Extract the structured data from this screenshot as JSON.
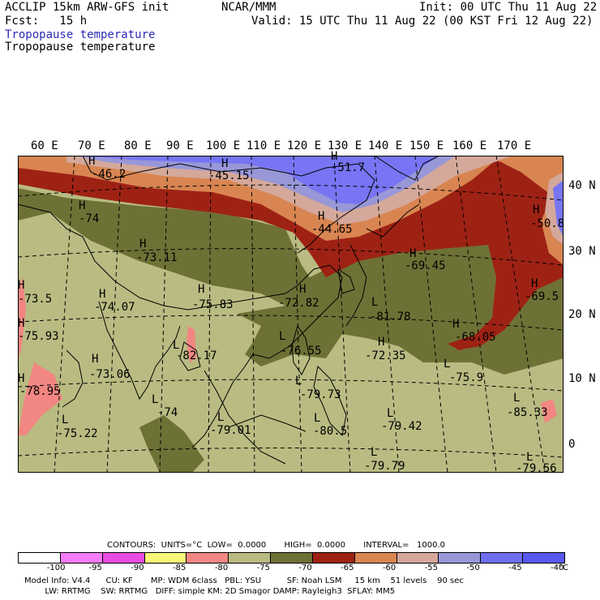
{
  "header": {
    "model_line": "ACCLIP 15km ARW-GFS init",
    "org": "NCAR/MMM",
    "init": "Init: 00 UTC Thu 11 Aug 22",
    "fcst": "Fcst:   15 h",
    "valid": "Valid: 15 UTC Thu 11 Aug 22 (00 KST Fri 12 Aug 22)",
    "field_1": "Tropopause temperature",
    "field_2": "Tropopause temperature"
  },
  "map": {
    "lon_labels": [
      "60 E",
      "70 E",
      "80 E",
      "90 E",
      "100 E",
      "110 E",
      "120 E",
      "130 E",
      "140 E",
      "150 E",
      "160 E",
      "170 E"
    ],
    "lat_labels": [
      "40 N",
      "30 N",
      "20 N",
      "10 N",
      "0"
    ],
    "highs": [
      {
        "mark": "H",
        "value": "-46.2"
      },
      {
        "mark": "H",
        "value": "-45.15"
      },
      {
        "mark": "H",
        "value": "-51.7"
      },
      {
        "mark": "H",
        "value": "-44.65"
      },
      {
        "mark": "H",
        "value": "-74"
      },
      {
        "mark": "H",
        "value": "-73.11"
      },
      {
        "mark": "H",
        "value": "-69.45"
      },
      {
        "mark": "H",
        "value": "-50.8"
      },
      {
        "mark": "H",
        "value": "-73.5"
      },
      {
        "mark": "H",
        "value": "-74.07"
      },
      {
        "mark": "H",
        "value": "-75.83"
      },
      {
        "mark": "H",
        "value": "-72.82"
      },
      {
        "mark": "H",
        "value": "-69.5"
      },
      {
        "mark": "H",
        "value": "-75.93"
      },
      {
        "mark": "H",
        "value": "-68.05"
      },
      {
        "mark": "H",
        "value": "-73.06"
      },
      {
        "mark": "H",
        "value": "-72.35"
      },
      {
        "mark": "H",
        "value": "-78.95"
      }
    ],
    "lows": [
      {
        "mark": "L",
        "value": "-81.78"
      },
      {
        "mark": "L",
        "value": "-82.17"
      },
      {
        "mark": "L",
        "value": "-76.55"
      },
      {
        "mark": "L",
        "value": "-75.9"
      },
      {
        "mark": "L",
        "value": "-79.73"
      },
      {
        "mark": "L",
        "value": "-74"
      },
      {
        "mark": "L",
        "value": "-85.33"
      },
      {
        "mark": "L",
        "value": "-75.22"
      },
      {
        "mark": "L",
        "value": "-79.42"
      },
      {
        "mark": "L",
        "value": "-79.01"
      },
      {
        "mark": "L",
        "value": "-80.5"
      },
      {
        "mark": "L",
        "value": "-79.79"
      },
      {
        "mark": "L",
        "value": "-79.56"
      }
    ],
    "fill_colors": {
      "cold_lt_minus75": "#b9bb82",
      "band_minus75_minus70": "#6e7136",
      "band_minus70_minus65": "#9e2214",
      "band_minus65_minus60": "#d98552",
      "band_minus60_minus55": "#d4a89a",
      "band_minus55_minus50": "#9897d8",
      "band_minus50_minus45": "#7775f3",
      "band_minus85_minus80": "#f28682"
    }
  },
  "contours": {
    "line": "CONTOURS:  UNITS=°C  LOW=  0.0000       HIGH=  0.0000       INTERVAL=   1000.0"
  },
  "colorbar": {
    "colors": [
      "#ffffff",
      "#f77cf7",
      "#e84ce0",
      "#f7f77a",
      "#f28682",
      "#b9bb82",
      "#6e7136",
      "#9e2214",
      "#d98552",
      "#d4a89a",
      "#9897d8",
      "#6f6ef2",
      "#5858f0"
    ],
    "labels": [
      "-100",
      "-95",
      "-90",
      "-85",
      "-80",
      "-75",
      "-70",
      "-65",
      "-60",
      "-55",
      "-50",
      "-45",
      "-40"
    ],
    "unit": "°C"
  },
  "footer": {
    "line1": "Model Info: V4.4      CU: KF       MP: WDM 6class   PBL: YSU          SF: Noah LSM     15 km    51 levels    90 sec",
    "line2": "        LW: RRTMG    SW: RRTMG   DIFF: simple KM: 2D Smagor DAMP: Rayleigh3  SFLAY: MM5"
  }
}
